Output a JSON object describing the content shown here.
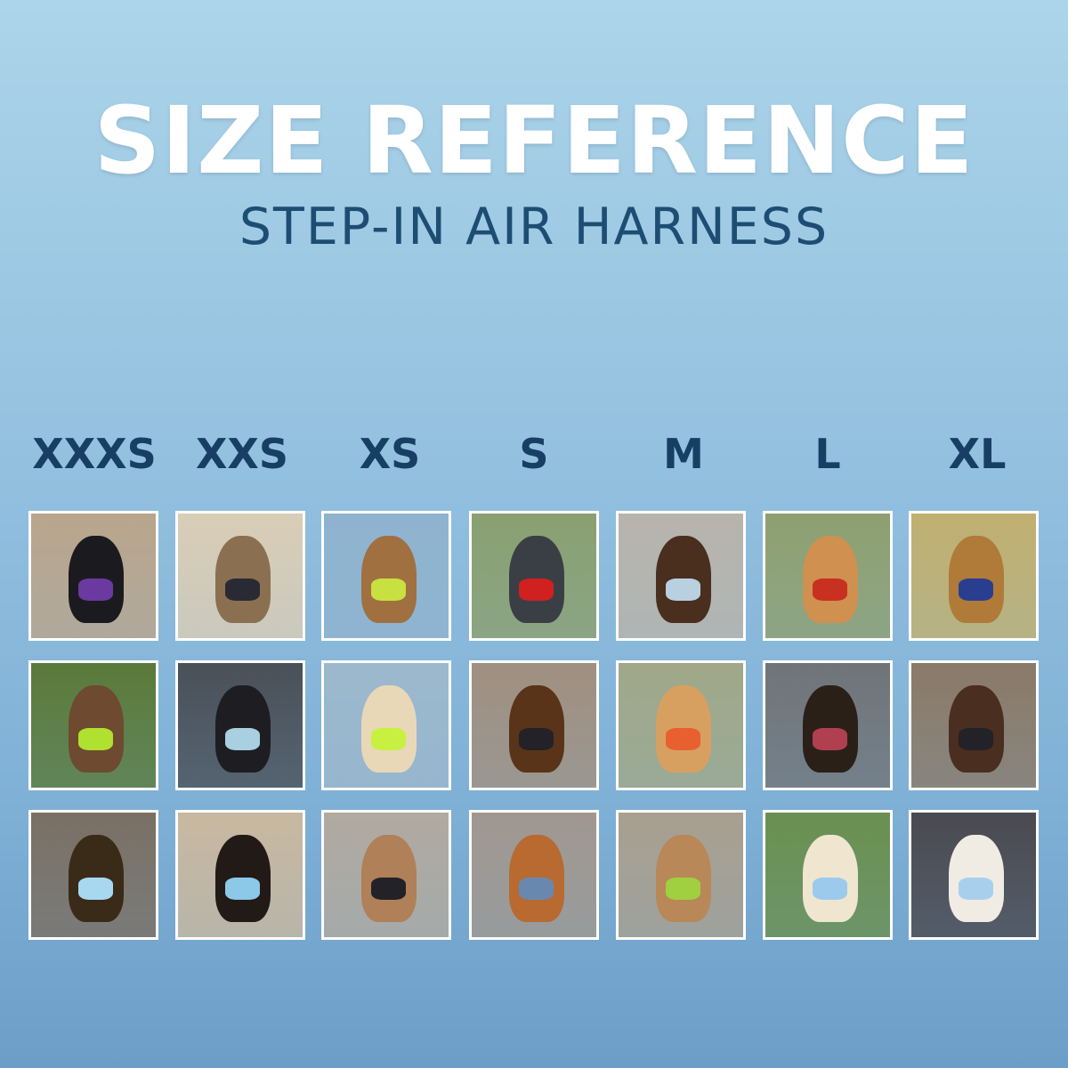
{
  "header": {
    "title": "SIZE REFERENCE",
    "subtitle": "STEP-IN AIR HARNESS"
  },
  "sizes": [
    "XXXS",
    "XXS",
    "XS",
    "S",
    "M",
    "L",
    "XL"
  ],
  "colors": {
    "title": "#ffffff",
    "subtitle": "#1d4d72",
    "size_label": "#173f63",
    "background_top": "#acd4ea",
    "background_bottom": "#6c9ec8"
  },
  "photos": [
    [
      {
        "bg": "#b9a58c",
        "pet": "#1b1b1f",
        "harness": "#6a3aa0"
      },
      {
        "bg": "#d9cdb6",
        "pet": "#8a7050",
        "harness": "#2a2a35"
      },
      {
        "bg": "#8fb3cf",
        "pet": "#a07040",
        "harness": "#c8e040"
      },
      {
        "bg": "#8aa070",
        "pet": "#3a3f45",
        "harness": "#d02020"
      },
      {
        "bg": "#b8b4ac",
        "pet": "#4a2e1e",
        "harness": "#b8d0e0"
      },
      {
        "bg": "#8ea070",
        "pet": "#d09050",
        "harness": "#c83020"
      },
      {
        "bg": "#c0b070",
        "pet": "#b07a38",
        "harness": "#2a3e90"
      }
    ],
    [
      {
        "bg": "#5a7a3a",
        "pet": "#6e4a30",
        "harness": "#b0e030"
      },
      {
        "bg": "#4a5058",
        "pet": "#1e1e22",
        "harness": "#a8d0e0"
      },
      {
        "bg": "#9cb8cc",
        "pet": "#e8d8b8",
        "harness": "#c8f040"
      },
      {
        "bg": "#a09080",
        "pet": "#5a3418",
        "harness": "#222228"
      },
      {
        "bg": "#a0a888",
        "pet": "#d8a060",
        "harness": "#e86030"
      },
      {
        "bg": "#707478",
        "pet": "#2a2018",
        "harness": "#b04050"
      },
      {
        "bg": "#8a7a68",
        "pet": "#4a2e20",
        "harness": "#222228"
      }
    ],
    [
      {
        "bg": "#7a7064",
        "pet": "#3a2a18",
        "harness": "#a8d8f0"
      },
      {
        "bg": "#c8b8a0",
        "pet": "#221a16",
        "harness": "#8cc8e8"
      },
      {
        "bg": "#b0aaa0",
        "pet": "#b08058",
        "harness": "#222228"
      },
      {
        "bg": "#a09890",
        "pet": "#b86a30",
        "harness": "#6888b0"
      },
      {
        "bg": "#a8a090",
        "pet": "#b88858",
        "harness": "#a0d040"
      },
      {
        "bg": "#6a9050",
        "pet": "#f0e6d0",
        "harness": "#9ccaec"
      },
      {
        "bg": "#4a4a50",
        "pet": "#f0ece4",
        "harness": "#a8d0ec"
      }
    ]
  ]
}
